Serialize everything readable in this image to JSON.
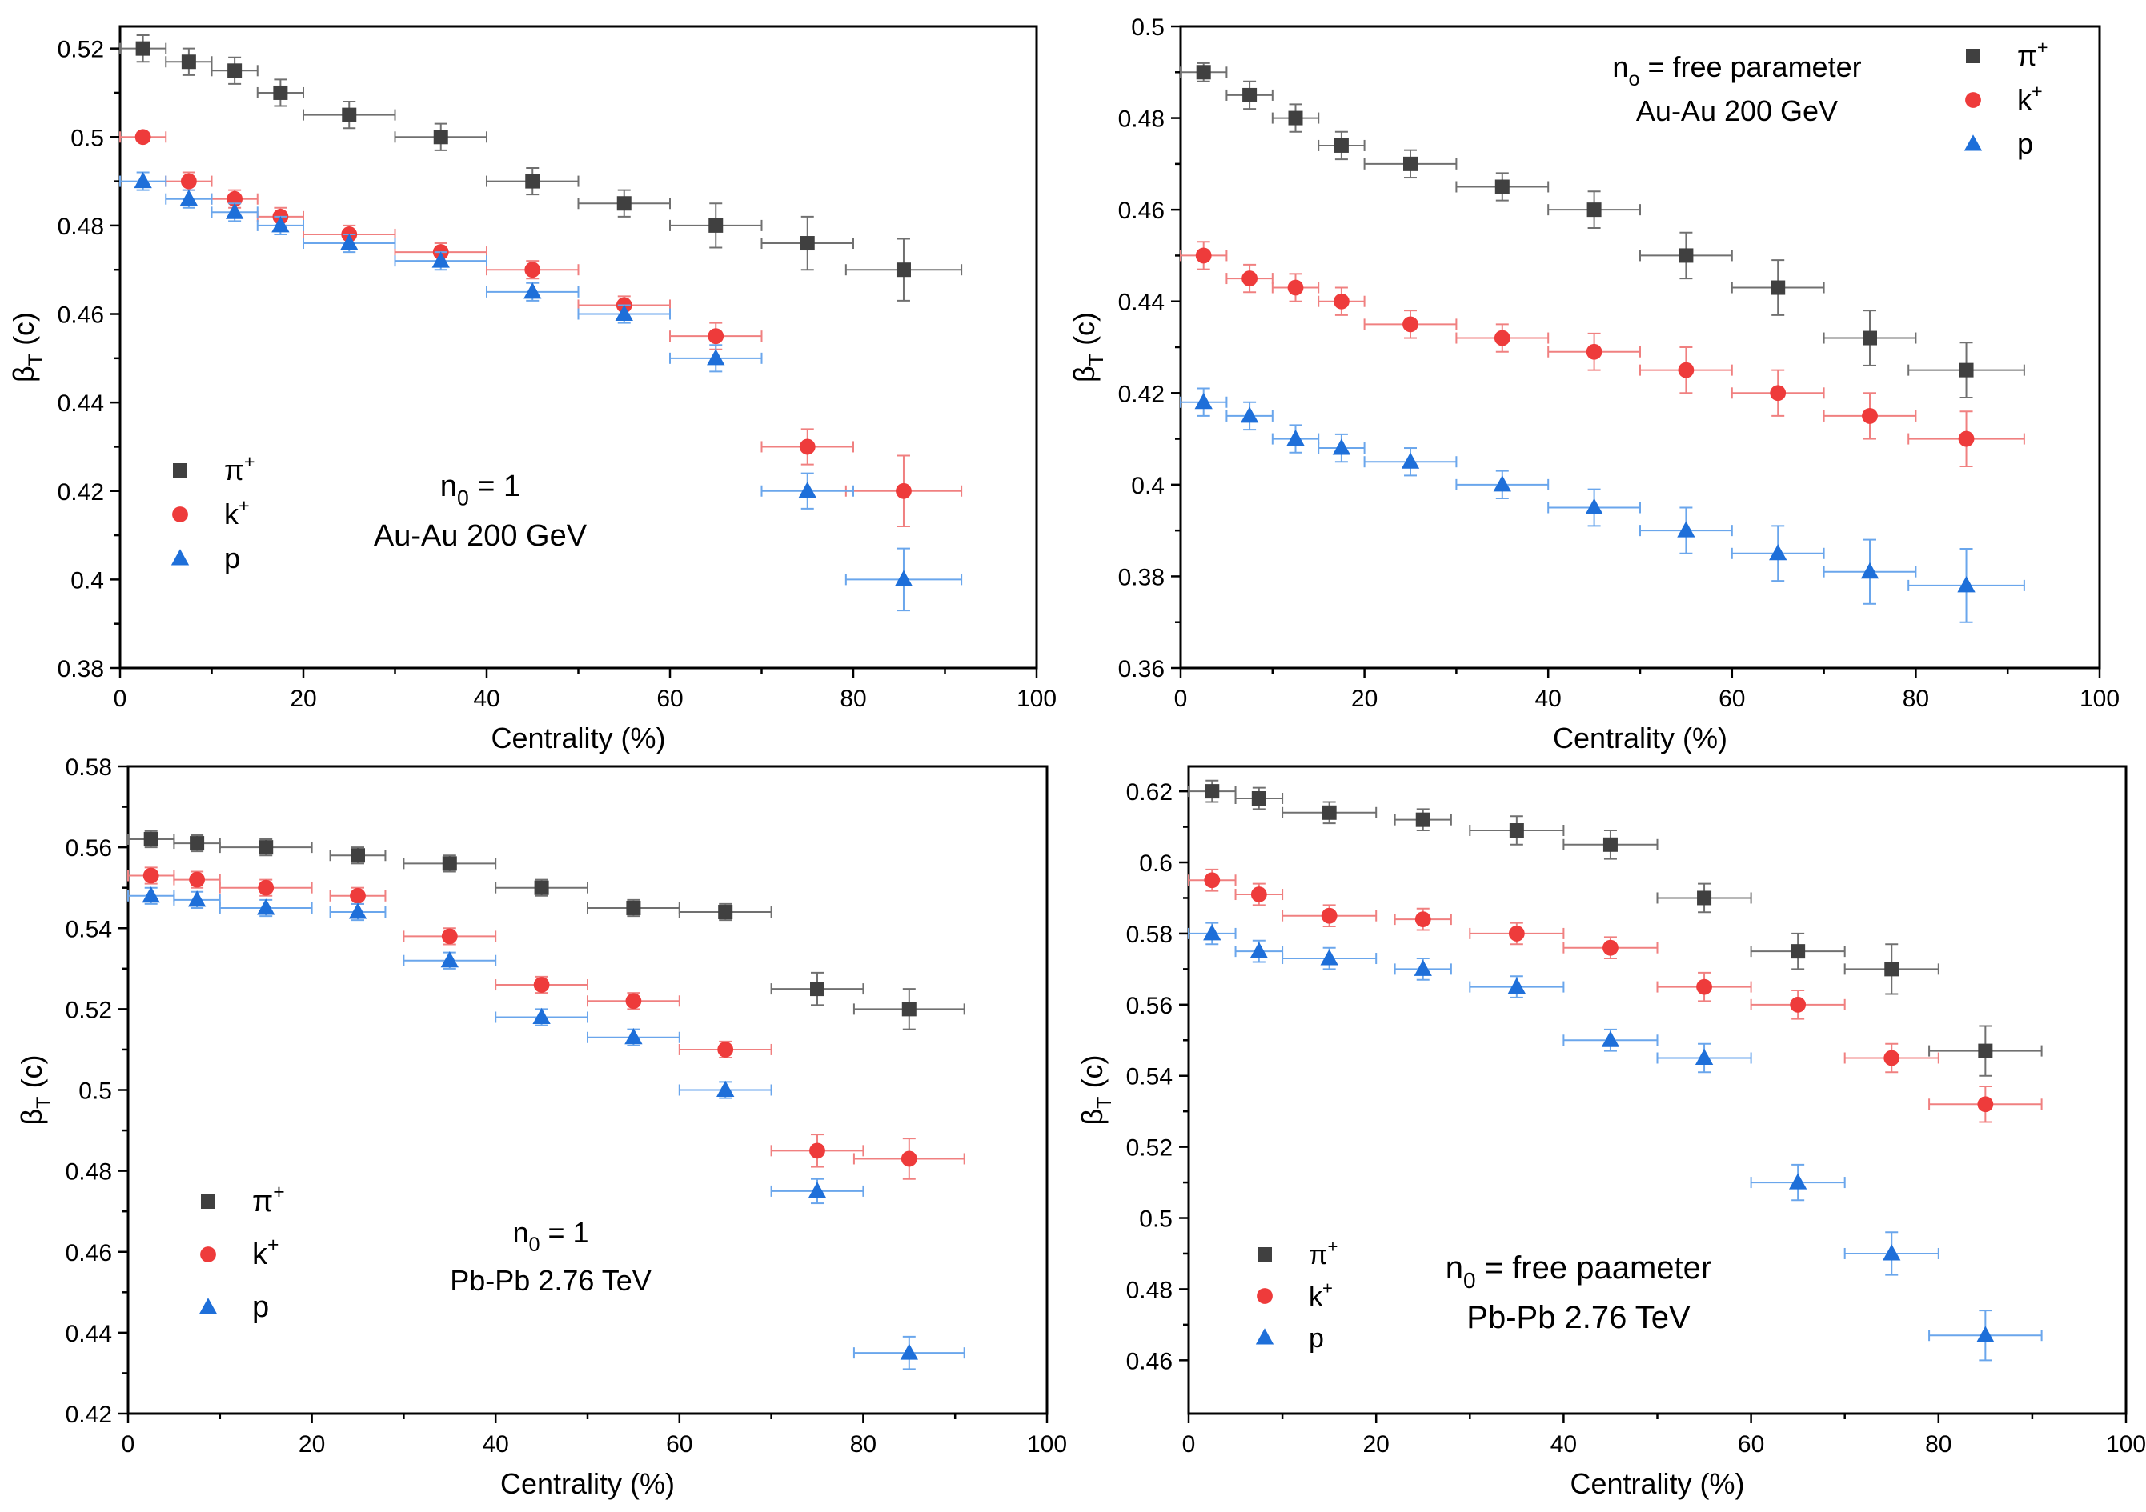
{
  "colors": {
    "pi": "#404040",
    "k": "#ee3b3b",
    "p": "#1e6fd9",
    "pi_err": "#707070",
    "k_err": "#f08080",
    "p_err": "#6aa6ec"
  },
  "chart_data": [
    {
      "type": "scatter",
      "panel": "top-left",
      "xlabel": "Centrality (%)",
      "ylabel": "βT (c)",
      "ylabel_main": "β",
      "ylabel_sub": "T",
      "ylabel_unit": " (c)",
      "xlim": [
        0,
        100
      ],
      "ylim": [
        0.38,
        0.525
      ],
      "xticks": [
        0,
        20,
        40,
        60,
        80,
        100
      ],
      "xtick_labels": [
        "0",
        "20",
        "40",
        "60",
        "80",
        "100"
      ],
      "yticks": [
        0.38,
        0.4,
        0.42,
        0.44,
        0.46,
        0.48,
        0.5,
        0.52
      ],
      "ytick_labels": [
        "0.38",
        "0.4",
        "0.42",
        "0.44",
        "0.46",
        "0.48",
        "0.5",
        "0.52"
      ],
      "legend_position": "lower-left",
      "annotation": {
        "line1": "n0 = 1",
        "line1_main": "n",
        "line1_sub": "0",
        "line1_rest": " = 1",
        "line2": "Au-Au 200 GeV"
      },
      "series": [
        {
          "name": "π+",
          "label_main": "π",
          "label_sup": "+",
          "marker": "square",
          "color_key": "pi",
          "x": [
            2.5,
            7.5,
            12.5,
            17.5,
            25,
            35,
            45,
            55,
            65,
            75,
            85.5
          ],
          "xerr": [
            2.5,
            2.5,
            2.5,
            2.5,
            5,
            5,
            5,
            5,
            5,
            5,
            6.3
          ],
          "y": [
            0.52,
            0.517,
            0.515,
            0.51,
            0.505,
            0.5,
            0.49,
            0.485,
            0.48,
            0.476,
            0.47
          ],
          "yerr": [
            0.003,
            0.003,
            0.003,
            0.003,
            0.003,
            0.003,
            0.003,
            0.003,
            0.005,
            0.006,
            0.007
          ]
        },
        {
          "name": "k+",
          "label_main": "k",
          "label_sup": "+",
          "marker": "circle",
          "color_key": "k",
          "x": [
            2.5,
            7.5,
            12.5,
            17.5,
            25,
            35,
            45,
            55,
            65,
            75,
            85.5
          ],
          "xerr": [
            2.5,
            2.5,
            2.5,
            2.5,
            5,
            5,
            5,
            5,
            5,
            5,
            6.3
          ],
          "y": [
            0.5,
            0.49,
            0.486,
            0.482,
            0.478,
            0.474,
            0.47,
            0.462,
            0.455,
            0.43,
            0.42
          ],
          "yerr": [
            0.001,
            0.002,
            0.002,
            0.002,
            0.002,
            0.002,
            0.002,
            0.002,
            0.003,
            0.004,
            0.008
          ]
        },
        {
          "name": "p",
          "label_main": "p",
          "label_sup": "",
          "marker": "triangle",
          "color_key": "p",
          "x": [
            2.5,
            7.5,
            12.5,
            17.5,
            25,
            35,
            45,
            55,
            65,
            75,
            85.5
          ],
          "xerr": [
            2.5,
            2.5,
            2.5,
            2.5,
            5,
            5,
            5,
            5,
            5,
            5,
            6.3
          ],
          "y": [
            0.49,
            0.486,
            0.483,
            0.48,
            0.476,
            0.472,
            0.465,
            0.46,
            0.45,
            0.42,
            0.4
          ],
          "yerr": [
            0.002,
            0.002,
            0.002,
            0.002,
            0.002,
            0.002,
            0.002,
            0.002,
            0.003,
            0.004,
            0.007
          ]
        }
      ]
    },
    {
      "type": "scatter",
      "panel": "top-right",
      "xlabel": "Centrality (%)",
      "ylabel": "βT (c)",
      "ylabel_main": "β",
      "ylabel_sub": "T",
      "ylabel_unit": " (c)",
      "xlim": [
        0,
        100
      ],
      "ylim": [
        0.36,
        0.5
      ],
      "xticks": [
        0,
        20,
        40,
        60,
        80,
        100
      ],
      "xtick_labels": [
        "0",
        "20",
        "40",
        "60",
        "80",
        "100"
      ],
      "yticks": [
        0.36,
        0.38,
        0.4,
        0.42,
        0.44,
        0.46,
        0.48,
        0.5
      ],
      "ytick_labels": [
        "0.36",
        "0.38",
        "0.4",
        "0.42",
        "0.44",
        "0.46",
        "0.48",
        "0.5"
      ],
      "legend_position": "top-right",
      "annotation": {
        "line1": "no = free parameter",
        "line1_main": "n",
        "line1_sub": "o",
        "line1_rest": " = free parameter",
        "line2": "Au-Au 200 GeV"
      },
      "series": [
        {
          "name": "π+",
          "label_main": "π",
          "label_sup": "+",
          "marker": "square",
          "color_key": "pi",
          "x": [
            2.5,
            7.5,
            12.5,
            17.5,
            25,
            35,
            45,
            55,
            65,
            75,
            85.5
          ],
          "xerr": [
            2.5,
            2.5,
            2.5,
            2.5,
            5,
            5,
            5,
            5,
            5,
            5,
            6.3
          ],
          "y": [
            0.49,
            0.485,
            0.48,
            0.474,
            0.47,
            0.465,
            0.46,
            0.45,
            0.443,
            0.432,
            0.425
          ],
          "yerr": [
            0.002,
            0.003,
            0.003,
            0.003,
            0.003,
            0.003,
            0.004,
            0.005,
            0.006,
            0.006,
            0.006
          ]
        },
        {
          "name": "k+",
          "label_main": "k",
          "label_sup": "+",
          "marker": "circle",
          "color_key": "k",
          "x": [
            2.5,
            7.5,
            12.5,
            17.5,
            25,
            35,
            45,
            55,
            65,
            75,
            85.5
          ],
          "xerr": [
            2.5,
            2.5,
            2.5,
            2.5,
            5,
            5,
            5,
            5,
            5,
            5,
            6.3
          ],
          "y": [
            0.45,
            0.445,
            0.443,
            0.44,
            0.435,
            0.432,
            0.429,
            0.425,
            0.42,
            0.415,
            0.41
          ],
          "yerr": [
            0.003,
            0.003,
            0.003,
            0.003,
            0.003,
            0.003,
            0.004,
            0.005,
            0.005,
            0.005,
            0.006
          ]
        },
        {
          "name": "p",
          "label_main": "p",
          "label_sup": "",
          "marker": "triangle",
          "color_key": "p",
          "x": [
            2.5,
            7.5,
            12.5,
            17.5,
            25,
            35,
            45,
            55,
            65,
            75,
            85.5
          ],
          "xerr": [
            2.5,
            2.5,
            2.5,
            2.5,
            5,
            5,
            5,
            5,
            5,
            5,
            6.3
          ],
          "y": [
            0.418,
            0.415,
            0.41,
            0.408,
            0.405,
            0.4,
            0.395,
            0.39,
            0.385,
            0.381,
            0.378
          ],
          "yerr": [
            0.003,
            0.003,
            0.003,
            0.003,
            0.003,
            0.003,
            0.004,
            0.005,
            0.006,
            0.007,
            0.008
          ]
        }
      ]
    },
    {
      "type": "scatter",
      "panel": "bottom-left",
      "xlabel": "Centrality (%)",
      "ylabel": "βT (c)",
      "ylabel_main": "β",
      "ylabel_sub": "T",
      "ylabel_unit": " (c)",
      "xlim": [
        0,
        100
      ],
      "ylim": [
        0.42,
        0.58
      ],
      "xticks": [
        0,
        20,
        40,
        60,
        80,
        100
      ],
      "xtick_labels": [
        "0",
        "20",
        "40",
        "60",
        "80",
        "100"
      ],
      "yticks": [
        0.42,
        0.44,
        0.46,
        0.48,
        0.5,
        0.52,
        0.54,
        0.56,
        0.58
      ],
      "ytick_labels": [
        "0.42",
        "0.44",
        "0.46",
        "0.48",
        "0.5",
        "0.52",
        "0.54",
        "0.56",
        "0.58"
      ],
      "legend_position": "lower-left",
      "annotation": {
        "line1": "n0 = 1",
        "line1_main": "n",
        "line1_sub": "0",
        "line1_rest": " = 1",
        "line2": "Pb-Pb 2.76 TeV"
      },
      "series": [
        {
          "name": "π+",
          "label_main": "π",
          "label_sup": "+",
          "marker": "square",
          "color_key": "pi",
          "x": [
            2.5,
            7.5,
            15,
            25,
            35,
            45,
            55,
            65,
            75,
            85
          ],
          "xerr": [
            2.5,
            2.5,
            5,
            3,
            5,
            5,
            5,
            5,
            5,
            6
          ],
          "y": [
            0.562,
            0.561,
            0.56,
            0.558,
            0.556,
            0.55,
            0.545,
            0.544,
            0.525,
            0.52
          ],
          "yerr": [
            0.002,
            0.002,
            0.002,
            0.002,
            0.002,
            0.002,
            0.002,
            0.002,
            0.004,
            0.005
          ]
        },
        {
          "name": "k+",
          "label_main": "k",
          "label_sup": "+",
          "marker": "circle",
          "color_key": "k",
          "x": [
            2.5,
            7.5,
            15,
            25,
            35,
            45,
            55,
            65,
            75,
            85
          ],
          "xerr": [
            2.5,
            2.5,
            5,
            3,
            5,
            5,
            5,
            5,
            5,
            6
          ],
          "y": [
            0.553,
            0.552,
            0.55,
            0.548,
            0.538,
            0.526,
            0.522,
            0.51,
            0.485,
            0.483
          ],
          "yerr": [
            0.002,
            0.002,
            0.002,
            0.002,
            0.002,
            0.002,
            0.002,
            0.002,
            0.004,
            0.005
          ]
        },
        {
          "name": "p",
          "label_main": "p",
          "label_sup": "",
          "marker": "triangle",
          "color_key": "p",
          "x": [
            2.5,
            7.5,
            15,
            25,
            35,
            45,
            55,
            65,
            75,
            85
          ],
          "xerr": [
            2.5,
            2.5,
            5,
            3,
            5,
            5,
            5,
            5,
            5,
            6
          ],
          "y": [
            0.548,
            0.547,
            0.545,
            0.544,
            0.532,
            0.518,
            0.513,
            0.5,
            0.475,
            0.435
          ],
          "yerr": [
            0.002,
            0.002,
            0.002,
            0.002,
            0.002,
            0.002,
            0.002,
            0.002,
            0.003,
            0.004
          ]
        }
      ]
    },
    {
      "type": "scatter",
      "panel": "bottom-right",
      "xlabel": "Centrality (%)",
      "ylabel": "βT (c)",
      "ylabel_main": "β",
      "ylabel_sub": "T",
      "ylabel_unit": " (c)",
      "xlim": [
        0,
        100
      ],
      "ylim": [
        0.445,
        0.627
      ],
      "xticks": [
        0,
        20,
        40,
        60,
        80,
        100
      ],
      "xtick_labels": [
        "0",
        "20",
        "40",
        "60",
        "80",
        "100"
      ],
      "yticks": [
        0.46,
        0.48,
        0.5,
        0.52,
        0.54,
        0.56,
        0.58,
        0.6,
        0.62
      ],
      "ytick_labels": [
        "0.46",
        "0.48",
        "0.5",
        "0.52",
        "0.54",
        "0.56",
        "0.58",
        "0.6",
        "0.62"
      ],
      "legend_position": "lower-left",
      "annotation": {
        "line1": "n0 = free paameter",
        "line1_main": "n",
        "line1_sub": "0",
        "line1_rest": " = free paameter",
        "line2": "Pb-Pb 2.76 TeV"
      },
      "series": [
        {
          "name": "π+",
          "label_main": "π",
          "label_sup": "+",
          "marker": "square",
          "color_key": "pi",
          "x": [
            2.5,
            7.5,
            15,
            25,
            35,
            45,
            55,
            65,
            75,
            85
          ],
          "xerr": [
            2.5,
            2.5,
            5,
            3,
            5,
            5,
            5,
            5,
            5,
            6
          ],
          "y": [
            0.62,
            0.618,
            0.614,
            0.612,
            0.609,
            0.605,
            0.59,
            0.575,
            0.57,
            0.547
          ],
          "yerr": [
            0.003,
            0.003,
            0.003,
            0.003,
            0.004,
            0.004,
            0.004,
            0.005,
            0.007,
            0.007
          ]
        },
        {
          "name": "k+",
          "label_main": "k",
          "label_sup": "+",
          "marker": "circle",
          "color_key": "k",
          "x": [
            2.5,
            7.5,
            15,
            25,
            35,
            45,
            55,
            65,
            75,
            85
          ],
          "xerr": [
            2.5,
            2.5,
            5,
            3,
            5,
            5,
            5,
            5,
            5,
            6
          ],
          "y": [
            0.595,
            0.591,
            0.585,
            0.584,
            0.58,
            0.576,
            0.565,
            0.56,
            0.545,
            0.532
          ],
          "yerr": [
            0.003,
            0.003,
            0.003,
            0.003,
            0.003,
            0.003,
            0.004,
            0.004,
            0.004,
            0.005
          ]
        },
        {
          "name": "p",
          "label_main": "p",
          "label_sup": "",
          "marker": "triangle",
          "color_key": "p",
          "x": [
            2.5,
            7.5,
            15,
            25,
            35,
            45,
            55,
            65,
            75,
            85
          ],
          "xerr": [
            2.5,
            2.5,
            5,
            3,
            5,
            5,
            5,
            5,
            5,
            6
          ],
          "y": [
            0.58,
            0.575,
            0.573,
            0.57,
            0.565,
            0.55,
            0.545,
            0.51,
            0.49,
            0.467
          ],
          "yerr": [
            0.003,
            0.003,
            0.003,
            0.003,
            0.003,
            0.003,
            0.004,
            0.005,
            0.006,
            0.007
          ]
        }
      ]
    }
  ]
}
